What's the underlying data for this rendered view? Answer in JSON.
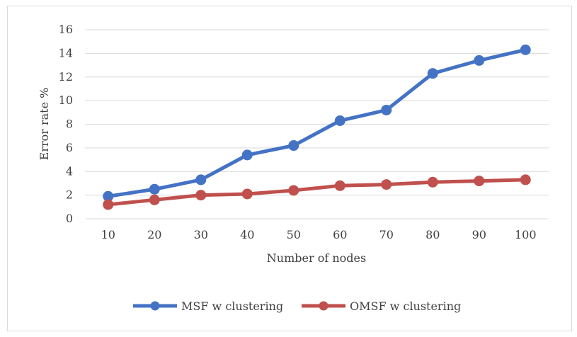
{
  "chart_data": {
    "type": "line",
    "title": "",
    "xlabel": "Number of nodes",
    "ylabel": "Error rate %",
    "x": [
      "10",
      "20",
      "30",
      "40",
      "50",
      "60",
      "70",
      "80",
      "90",
      "100"
    ],
    "ylim": [
      0,
      16
    ],
    "yticks": [
      "0",
      "2",
      "4",
      "6",
      "8",
      "10",
      "12",
      "14",
      "16"
    ],
    "grid": true,
    "legend": "bottom",
    "series": [
      {
        "name": "MSF w clustering",
        "color": "#4472c4",
        "values": [
          1.9,
          2.5,
          3.3,
          5.4,
          6.2,
          8.3,
          9.2,
          12.3,
          13.4,
          14.3
        ]
      },
      {
        "name": "OMSF w clustering",
        "color": "#c0504d",
        "values": [
          1.2,
          1.6,
          2.0,
          2.1,
          2.4,
          2.8,
          2.9,
          3.1,
          3.2,
          3.3
        ]
      }
    ]
  }
}
